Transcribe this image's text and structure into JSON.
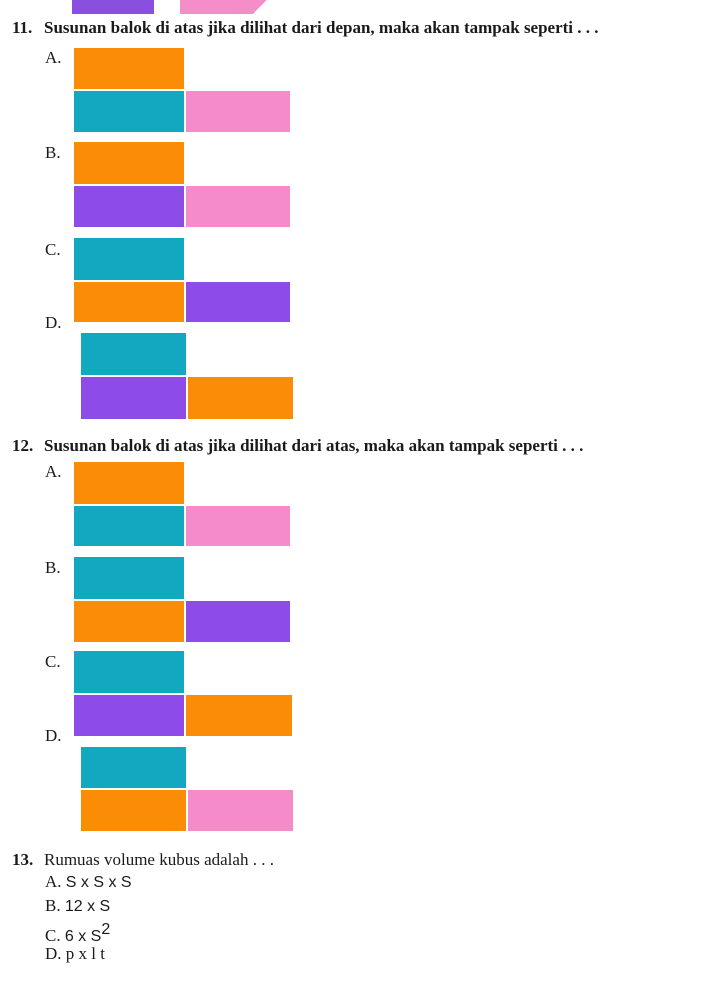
{
  "q11": {
    "number": "11.",
    "text": "Susunan balok di atas jika dilihat dari depan, maka akan tampak seperti . . .",
    "options": [
      {
        "label": "A.",
        "top": "orange",
        "bottom_left": "teal",
        "bottom_right": "pink"
      },
      {
        "label": "B.",
        "top": "orange",
        "bottom_left": "purple",
        "bottom_right": "pink"
      },
      {
        "label": "C.",
        "top": "teal",
        "bottom_left": "orange",
        "bottom_right": "purple"
      },
      {
        "label": "D.",
        "top": "teal",
        "bottom_left": "purple",
        "bottom_right": "orange"
      }
    ]
  },
  "q12": {
    "number": "12.",
    "text": "Susunan balok di atas jika dilihat dari atas, maka akan tampak seperti . . .",
    "options": [
      {
        "label": "A.",
        "top": "orange",
        "bottom_left": "teal",
        "bottom_right": "pink"
      },
      {
        "label": "B.",
        "top": "teal",
        "bottom_left": "orange",
        "bottom_right": "purple"
      },
      {
        "label": "C.",
        "top": "teal",
        "bottom_left": "purple",
        "bottom_right": "orange"
      },
      {
        "label": "D.",
        "top": "teal",
        "bottom_left": "orange",
        "bottom_right": "pink"
      }
    ]
  },
  "q13": {
    "number": "13.",
    "text": "Rumuas volume kubus adalah . . .",
    "options": [
      {
        "label": "A.",
        "value": "S x S x S"
      },
      {
        "label": "B.",
        "value": "12 x S"
      },
      {
        "label": "C.",
        "value": "6 x S",
        "sup": "2"
      },
      {
        "label": "D.",
        "value": "p x l t"
      }
    ]
  },
  "colors": {
    "orange": "#fb8c06",
    "teal": "#12a9c0",
    "purple": "#8d4be8",
    "pink": "#f58cc9"
  }
}
